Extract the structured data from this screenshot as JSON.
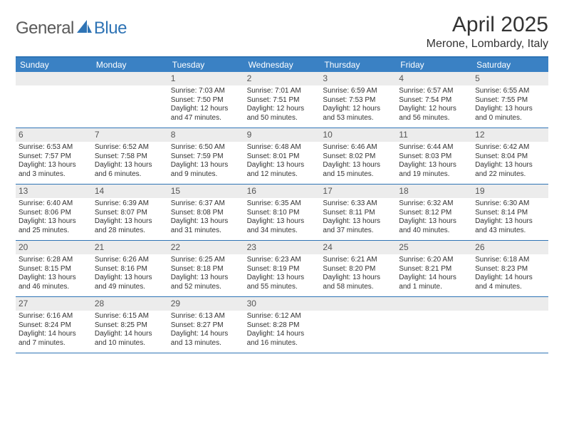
{
  "brand": {
    "part1": "General",
    "part2": "Blue"
  },
  "title": "April 2025",
  "location": "Merone, Lombardy, Italy",
  "colors": {
    "header_bar": "#3a81c4",
    "rule": "#2f74b5",
    "numrow_bg": "#ececec",
    "text": "#333333",
    "logo_gray": "#5a5a5a",
    "logo_blue": "#2f74b5"
  },
  "typography": {
    "title_fontsize": 30,
    "location_fontsize": 16,
    "dayhead_fontsize": 12,
    "daynum_fontsize": 12,
    "body_fontsize": 10
  },
  "day_headers": [
    "Sunday",
    "Monday",
    "Tuesday",
    "Wednesday",
    "Thursday",
    "Friday",
    "Saturday"
  ],
  "weeks": [
    [
      {
        "n": "",
        "empty": true
      },
      {
        "n": "",
        "empty": true
      },
      {
        "n": "1",
        "sunrise": "Sunrise: 7:03 AM",
        "sunset": "Sunset: 7:50 PM",
        "day1": "Daylight: 12 hours",
        "day2": "and 47 minutes."
      },
      {
        "n": "2",
        "sunrise": "Sunrise: 7:01 AM",
        "sunset": "Sunset: 7:51 PM",
        "day1": "Daylight: 12 hours",
        "day2": "and 50 minutes."
      },
      {
        "n": "3",
        "sunrise": "Sunrise: 6:59 AM",
        "sunset": "Sunset: 7:53 PM",
        "day1": "Daylight: 12 hours",
        "day2": "and 53 minutes."
      },
      {
        "n": "4",
        "sunrise": "Sunrise: 6:57 AM",
        "sunset": "Sunset: 7:54 PM",
        "day1": "Daylight: 12 hours",
        "day2": "and 56 minutes."
      },
      {
        "n": "5",
        "sunrise": "Sunrise: 6:55 AM",
        "sunset": "Sunset: 7:55 PM",
        "day1": "Daylight: 13 hours",
        "day2": "and 0 minutes."
      }
    ],
    [
      {
        "n": "6",
        "sunrise": "Sunrise: 6:53 AM",
        "sunset": "Sunset: 7:57 PM",
        "day1": "Daylight: 13 hours",
        "day2": "and 3 minutes."
      },
      {
        "n": "7",
        "sunrise": "Sunrise: 6:52 AM",
        "sunset": "Sunset: 7:58 PM",
        "day1": "Daylight: 13 hours",
        "day2": "and 6 minutes."
      },
      {
        "n": "8",
        "sunrise": "Sunrise: 6:50 AM",
        "sunset": "Sunset: 7:59 PM",
        "day1": "Daylight: 13 hours",
        "day2": "and 9 minutes."
      },
      {
        "n": "9",
        "sunrise": "Sunrise: 6:48 AM",
        "sunset": "Sunset: 8:01 PM",
        "day1": "Daylight: 13 hours",
        "day2": "and 12 minutes."
      },
      {
        "n": "10",
        "sunrise": "Sunrise: 6:46 AM",
        "sunset": "Sunset: 8:02 PM",
        "day1": "Daylight: 13 hours",
        "day2": "and 15 minutes."
      },
      {
        "n": "11",
        "sunrise": "Sunrise: 6:44 AM",
        "sunset": "Sunset: 8:03 PM",
        "day1": "Daylight: 13 hours",
        "day2": "and 19 minutes."
      },
      {
        "n": "12",
        "sunrise": "Sunrise: 6:42 AM",
        "sunset": "Sunset: 8:04 PM",
        "day1": "Daylight: 13 hours",
        "day2": "and 22 minutes."
      }
    ],
    [
      {
        "n": "13",
        "sunrise": "Sunrise: 6:40 AM",
        "sunset": "Sunset: 8:06 PM",
        "day1": "Daylight: 13 hours",
        "day2": "and 25 minutes."
      },
      {
        "n": "14",
        "sunrise": "Sunrise: 6:39 AM",
        "sunset": "Sunset: 8:07 PM",
        "day1": "Daylight: 13 hours",
        "day2": "and 28 minutes."
      },
      {
        "n": "15",
        "sunrise": "Sunrise: 6:37 AM",
        "sunset": "Sunset: 8:08 PM",
        "day1": "Daylight: 13 hours",
        "day2": "and 31 minutes."
      },
      {
        "n": "16",
        "sunrise": "Sunrise: 6:35 AM",
        "sunset": "Sunset: 8:10 PM",
        "day1": "Daylight: 13 hours",
        "day2": "and 34 minutes."
      },
      {
        "n": "17",
        "sunrise": "Sunrise: 6:33 AM",
        "sunset": "Sunset: 8:11 PM",
        "day1": "Daylight: 13 hours",
        "day2": "and 37 minutes."
      },
      {
        "n": "18",
        "sunrise": "Sunrise: 6:32 AM",
        "sunset": "Sunset: 8:12 PM",
        "day1": "Daylight: 13 hours",
        "day2": "and 40 minutes."
      },
      {
        "n": "19",
        "sunrise": "Sunrise: 6:30 AM",
        "sunset": "Sunset: 8:14 PM",
        "day1": "Daylight: 13 hours",
        "day2": "and 43 minutes."
      }
    ],
    [
      {
        "n": "20",
        "sunrise": "Sunrise: 6:28 AM",
        "sunset": "Sunset: 8:15 PM",
        "day1": "Daylight: 13 hours",
        "day2": "and 46 minutes."
      },
      {
        "n": "21",
        "sunrise": "Sunrise: 6:26 AM",
        "sunset": "Sunset: 8:16 PM",
        "day1": "Daylight: 13 hours",
        "day2": "and 49 minutes."
      },
      {
        "n": "22",
        "sunrise": "Sunrise: 6:25 AM",
        "sunset": "Sunset: 8:18 PM",
        "day1": "Daylight: 13 hours",
        "day2": "and 52 minutes."
      },
      {
        "n": "23",
        "sunrise": "Sunrise: 6:23 AM",
        "sunset": "Sunset: 8:19 PM",
        "day1": "Daylight: 13 hours",
        "day2": "and 55 minutes."
      },
      {
        "n": "24",
        "sunrise": "Sunrise: 6:21 AM",
        "sunset": "Sunset: 8:20 PM",
        "day1": "Daylight: 13 hours",
        "day2": "and 58 minutes."
      },
      {
        "n": "25",
        "sunrise": "Sunrise: 6:20 AM",
        "sunset": "Sunset: 8:21 PM",
        "day1": "Daylight: 14 hours",
        "day2": "and 1 minute."
      },
      {
        "n": "26",
        "sunrise": "Sunrise: 6:18 AM",
        "sunset": "Sunset: 8:23 PM",
        "day1": "Daylight: 14 hours",
        "day2": "and 4 minutes."
      }
    ],
    [
      {
        "n": "27",
        "sunrise": "Sunrise: 6:16 AM",
        "sunset": "Sunset: 8:24 PM",
        "day1": "Daylight: 14 hours",
        "day2": "and 7 minutes."
      },
      {
        "n": "28",
        "sunrise": "Sunrise: 6:15 AM",
        "sunset": "Sunset: 8:25 PM",
        "day1": "Daylight: 14 hours",
        "day2": "and 10 minutes."
      },
      {
        "n": "29",
        "sunrise": "Sunrise: 6:13 AM",
        "sunset": "Sunset: 8:27 PM",
        "day1": "Daylight: 14 hours",
        "day2": "and 13 minutes."
      },
      {
        "n": "30",
        "sunrise": "Sunrise: 6:12 AM",
        "sunset": "Sunset: 8:28 PM",
        "day1": "Daylight: 14 hours",
        "day2": "and 16 minutes."
      },
      {
        "n": "",
        "empty": true
      },
      {
        "n": "",
        "empty": true
      },
      {
        "n": "",
        "empty": true
      }
    ]
  ]
}
